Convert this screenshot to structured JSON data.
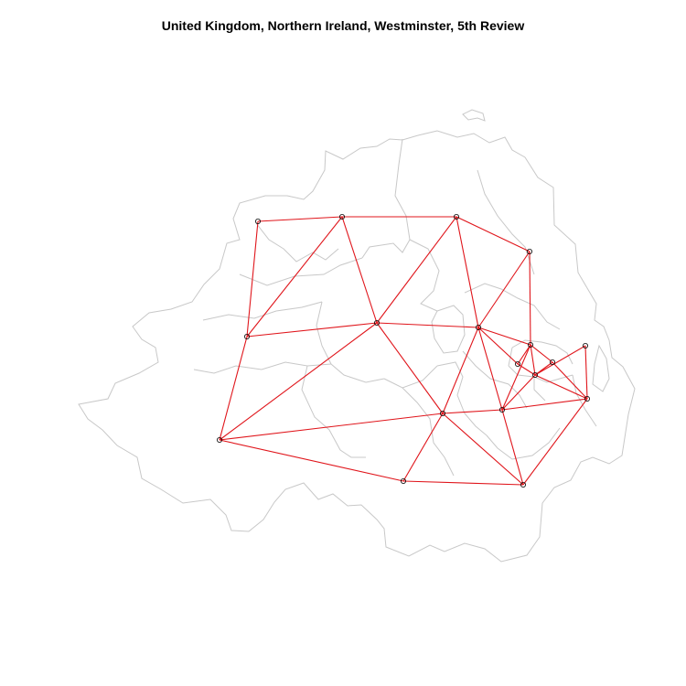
{
  "title": "United Kingdom, Northern Ireland, Westminster, 5th Review",
  "colors": {
    "background": "#ffffff",
    "boundary": "#c8c8c8",
    "edge": "#e0151b",
    "node_stroke": "#000000"
  },
  "map": {
    "regions": 18,
    "feature": "constituency boundaries with centroid neighbour graph"
  }
}
